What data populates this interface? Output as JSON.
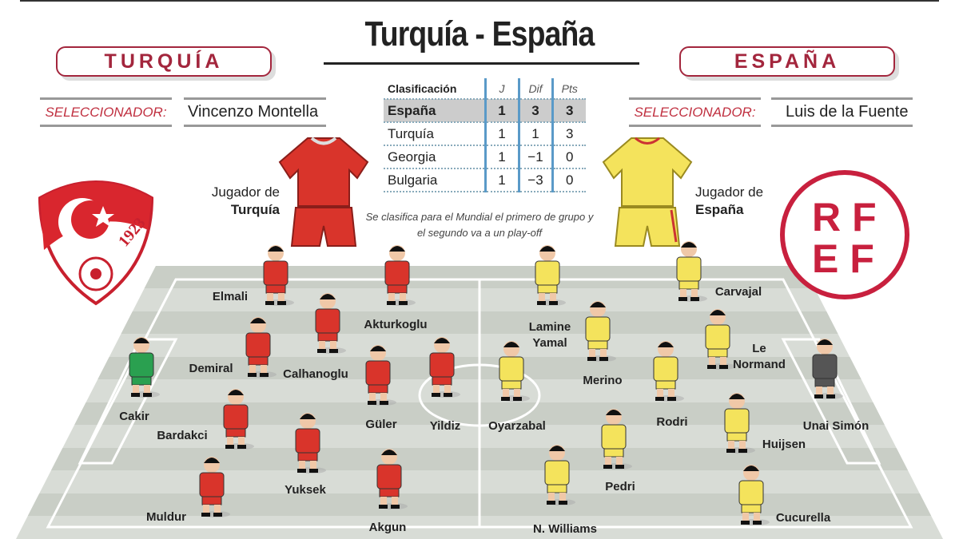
{
  "title": "Turquía - España",
  "home": {
    "name": "TURQUÍA",
    "coach_label": "SELECCIONADOR:",
    "coach": "Vincenzo Montella",
    "player_label_1": "Jugador de",
    "player_label_2": "Turquía",
    "shirt_color": "#d9342b",
    "crest_year": "1923"
  },
  "away": {
    "name": "ESPAÑA",
    "coach_label": "SELECCIONADOR:",
    "coach": "Luis de la Fuente",
    "player_label_1": "Jugador de",
    "player_label_2": "España",
    "shirt_color": "#f4e35c",
    "crest_letters": "RFEF"
  },
  "standings": {
    "headers": [
      "Clasificación",
      "J",
      "Dif",
      "Pts"
    ],
    "rows": [
      [
        "España",
        "1",
        "3",
        "3"
      ],
      [
        "Turquía",
        "1",
        "1",
        "3"
      ],
      [
        "Georgia",
        "1",
        "−1",
        "0"
      ],
      [
        "Bulgaria",
        "1",
        "−3",
        "0"
      ]
    ],
    "note": "Se clasifica para el Mundial el primero de grupo y el segundo va a un play-off"
  },
  "colors": {
    "accent": "#a3263d",
    "turkey": "#d9342b",
    "spain": "#f4e35c",
    "turkey_gk": "#2aa050",
    "spain_gk": "#555555"
  },
  "players": [
    {
      "name": "Cakir",
      "team": "turkey",
      "gk": true
    },
    {
      "name": "Elmali",
      "team": "turkey"
    },
    {
      "name": "Demiral",
      "team": "turkey"
    },
    {
      "name": "Calhanoglu",
      "team": "turkey"
    },
    {
      "name": "Akturkoglu",
      "team": "turkey"
    },
    {
      "name": "Bardakci",
      "team": "turkey"
    },
    {
      "name": "Güler",
      "team": "turkey"
    },
    {
      "name": "Yildiz",
      "team": "turkey"
    },
    {
      "name": "Yuksek",
      "team": "turkey"
    },
    {
      "name": "Muldur",
      "team": "turkey"
    },
    {
      "name": "Akgun",
      "team": "turkey"
    },
    {
      "name": "Oyarzabal",
      "team": "spain"
    },
    {
      "name": "Lamine Yamal",
      "team": "spain"
    },
    {
      "name": "Merino",
      "team": "spain"
    },
    {
      "name": "Pedri",
      "team": "spain"
    },
    {
      "name": "N. Williams",
      "team": "spain"
    },
    {
      "name": "Rodri",
      "team": "spain"
    },
    {
      "name": "Carvajal",
      "team": "spain"
    },
    {
      "name": "Le Normand",
      "team": "spain"
    },
    {
      "name": "Huijsen",
      "team": "spain"
    },
    {
      "name": "Cucurella",
      "team": "spain"
    },
    {
      "name": "Unai Simón",
      "team": "spain",
      "gk": true
    }
  ]
}
